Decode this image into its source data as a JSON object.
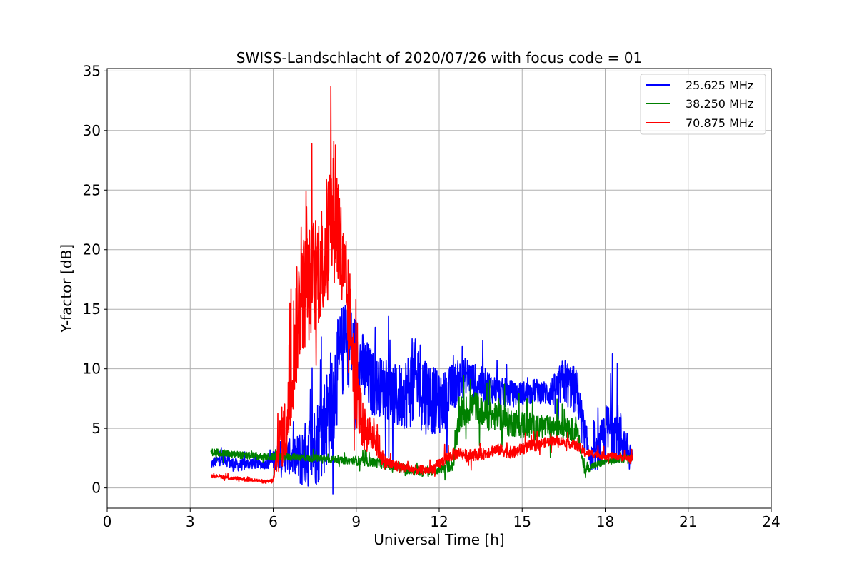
{
  "chart_data": {
    "type": "line",
    "title": "SWISS-Landschlacht of 2020/07/26 with focus code = 01",
    "xlabel": "Universal Time [h]",
    "ylabel": "Y-factor [dB]",
    "xlim": [
      0,
      24
    ],
    "ylim": [
      -1.7,
      35.2
    ],
    "xticks": [
      0,
      3,
      6,
      9,
      12,
      15,
      18,
      21,
      24
    ],
    "yticks": [
      0,
      5,
      10,
      15,
      20,
      25,
      30,
      35
    ],
    "grid": true,
    "legend_position": "top-right",
    "series": [
      {
        "name": "25.625 MHz",
        "color": "#0000ff",
        "x": [
          3.75,
          4.0,
          4.25,
          4.5,
          4.75,
          5.0,
          5.25,
          5.5,
          5.75,
          6.0,
          6.25,
          6.5,
          6.75,
          7.0,
          7.25,
          7.5,
          7.75,
          8.0,
          8.25,
          8.5,
          8.75,
          9.0,
          9.25,
          9.5,
          9.75,
          10.0,
          10.25,
          10.5,
          10.75,
          11.0,
          11.25,
          11.5,
          11.75,
          12.0,
          12.25,
          12.5,
          12.75,
          13.0,
          13.25,
          13.5,
          13.75,
          14.0,
          14.25,
          14.5,
          14.75,
          15.0,
          15.25,
          15.5,
          15.75,
          16.0,
          16.25,
          16.5,
          16.75,
          17.0,
          17.25,
          17.5,
          17.75,
          18.0,
          18.25,
          18.5,
          18.75,
          19.0
        ],
        "y": [
          2.0,
          2.3,
          2.5,
          2.0,
          1.9,
          2.0,
          2.1,
          2.0,
          2.0,
          2.3,
          2.8,
          2.7,
          2.5,
          2.5,
          3.0,
          3.6,
          4.5,
          6.5,
          9.0,
          11.5,
          12.0,
          11.5,
          10.0,
          9.0,
          8.5,
          8.5,
          8.0,
          7.5,
          8.0,
          8.5,
          9.0,
          8.0,
          7.5,
          7.0,
          7.5,
          8.5,
          9.0,
          9.5,
          9.0,
          8.7,
          8.5,
          8.3,
          8.0,
          8.0,
          7.8,
          8.0,
          8.0,
          8.2,
          8.0,
          8.0,
          8.3,
          9.0,
          8.5,
          8.0,
          4.5,
          2.5,
          3.0,
          4.5,
          5.0,
          4.5,
          3.5,
          2.5
        ],
        "spread": [
          0.4,
          0.5,
          0.5,
          0.6,
          0.5,
          0.5,
          0.5,
          0.4,
          0.4,
          0.8,
          1.2,
          1.5,
          1.5,
          2.5,
          3.0,
          3.5,
          4.0,
          4.5,
          4.5,
          4.0,
          3.5,
          3.0,
          3.0,
          3.0,
          2.5,
          2.5,
          2.5,
          2.8,
          3.0,
          3.5,
          4.0,
          3.5,
          3.0,
          2.5,
          2.5,
          2.0,
          1.8,
          1.5,
          1.5,
          1.5,
          1.5,
          1.2,
          1.2,
          1.2,
          1.0,
          1.0,
          1.0,
          1.0,
          1.0,
          1.2,
          1.5,
          2.0,
          2.0,
          2.0,
          1.5,
          1.0,
          1.5,
          2.5,
          2.5,
          2.5,
          1.5,
          0.5
        ]
      },
      {
        "name": "38.250 MHz",
        "color": "#008000",
        "x": [
          3.75,
          4.0,
          4.25,
          4.5,
          4.75,
          5.0,
          5.25,
          5.5,
          5.75,
          6.0,
          6.25,
          6.5,
          6.75,
          7.0,
          7.25,
          7.5,
          7.75,
          8.0,
          8.25,
          8.5,
          8.75,
          9.0,
          9.25,
          9.5,
          9.75,
          10.0,
          10.25,
          10.5,
          10.75,
          11.0,
          11.25,
          11.5,
          11.75,
          12.0,
          12.25,
          12.5,
          12.75,
          13.0,
          13.25,
          13.5,
          13.75,
          14.0,
          14.25,
          14.5,
          14.75,
          15.0,
          15.25,
          15.5,
          15.75,
          16.0,
          16.25,
          16.5,
          16.75,
          17.0,
          17.25,
          17.5,
          17.75,
          18.0,
          18.25,
          18.5,
          18.75,
          19.0
        ],
        "y": [
          3.0,
          3.0,
          2.9,
          2.8,
          2.8,
          2.7,
          2.7,
          2.6,
          2.6,
          2.6,
          2.6,
          2.6,
          2.6,
          2.6,
          2.5,
          2.5,
          2.5,
          2.4,
          2.4,
          2.3,
          2.3,
          2.3,
          2.2,
          2.2,
          2.1,
          2.0,
          1.9,
          1.7,
          1.6,
          1.5,
          1.4,
          1.3,
          1.4,
          1.6,
          1.8,
          2.0,
          6.0,
          6.5,
          7.0,
          6.5,
          6.0,
          6.0,
          6.0,
          5.5,
          5.5,
          5.3,
          5.3,
          5.0,
          5.2,
          5.0,
          5.2,
          5.5,
          5.0,
          4.5,
          1.5,
          1.8,
          2.0,
          2.2,
          2.3,
          2.4,
          2.5,
          2.5
        ],
        "spread": [
          0.3,
          0.3,
          0.3,
          0.3,
          0.3,
          0.3,
          0.3,
          0.3,
          0.3,
          0.3,
          0.3,
          0.3,
          0.3,
          0.3,
          0.3,
          0.3,
          0.3,
          0.3,
          0.3,
          0.3,
          0.3,
          0.4,
          0.4,
          0.4,
          0.4,
          0.4,
          0.4,
          0.4,
          0.4,
          0.4,
          0.4,
          0.4,
          0.4,
          0.4,
          0.5,
          0.6,
          1.2,
          1.3,
          1.3,
          1.2,
          1.2,
          1.2,
          1.2,
          1.2,
          1.2,
          1.2,
          1.2,
          1.0,
          1.0,
          1.0,
          1.0,
          1.2,
          1.0,
          0.8,
          0.4,
          0.3,
          0.3,
          0.3,
          0.3,
          0.3,
          0.3,
          0.3
        ]
      },
      {
        "name": "70.875 MHz",
        "color": "#ff0000",
        "x": [
          3.75,
          4.0,
          4.25,
          4.5,
          4.75,
          5.0,
          5.25,
          5.5,
          5.75,
          6.0,
          6.25,
          6.5,
          6.75,
          7.0,
          7.25,
          7.5,
          7.75,
          8.0,
          8.25,
          8.5,
          8.75,
          9.0,
          9.25,
          9.5,
          9.75,
          10.0,
          10.25,
          10.5,
          10.75,
          11.0,
          11.25,
          11.5,
          11.75,
          12.0,
          12.25,
          12.5,
          12.75,
          13.0,
          13.25,
          13.5,
          13.75,
          14.0,
          14.25,
          14.5,
          14.75,
          15.0,
          15.25,
          15.5,
          15.75,
          16.0,
          16.25,
          16.5,
          16.75,
          17.0,
          17.25,
          17.5,
          17.75,
          18.0,
          18.25,
          18.5,
          18.75,
          19.0
        ],
        "y": [
          1.0,
          1.0,
          0.9,
          0.8,
          0.8,
          0.7,
          0.7,
          0.6,
          0.5,
          0.6,
          4.0,
          5.0,
          12.0,
          16.0,
          17.0,
          18.0,
          19.0,
          21.0,
          24.0,
          18.0,
          15.0,
          8.0,
          5.0,
          4.5,
          4.0,
          2.2,
          2.0,
          1.8,
          1.7,
          1.6,
          1.5,
          1.5,
          1.6,
          2.0,
          2.5,
          2.8,
          3.0,
          2.7,
          2.8,
          2.8,
          3.0,
          3.2,
          3.2,
          3.0,
          3.0,
          3.3,
          3.5,
          3.6,
          3.8,
          3.9,
          4.0,
          3.9,
          3.7,
          3.5,
          3.0,
          2.9,
          2.8,
          2.7,
          2.7,
          2.6,
          2.5,
          2.5
        ],
        "spread": [
          0.15,
          0.15,
          0.15,
          0.15,
          0.15,
          0.15,
          0.15,
          0.15,
          0.15,
          0.2,
          2.5,
          3.0,
          5.0,
          5.0,
          5.0,
          5.0,
          5.0,
          6.0,
          6.5,
          5.0,
          4.0,
          3.0,
          2.0,
          1.5,
          1.5,
          0.6,
          0.5,
          0.5,
          0.4,
          0.4,
          0.4,
          0.4,
          0.4,
          0.5,
          0.5,
          0.5,
          0.5,
          0.5,
          0.5,
          0.5,
          0.5,
          0.5,
          0.5,
          0.5,
          0.5,
          0.5,
          0.5,
          0.5,
          0.4,
          0.4,
          0.4,
          0.4,
          0.4,
          0.4,
          0.4,
          0.3,
          0.3,
          0.3,
          0.3,
          0.3,
          0.3,
          0.3
        ]
      }
    ]
  }
}
